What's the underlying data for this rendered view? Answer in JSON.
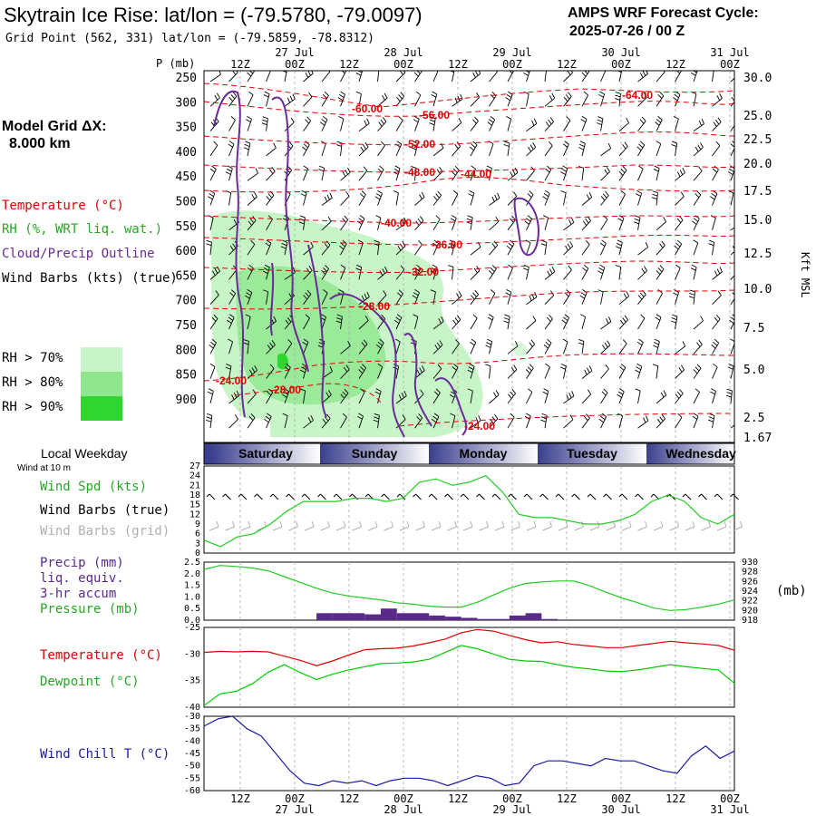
{
  "header": {
    "title": "Skytrain Ice Rise:  lat/lon = (-79.5780, -79.0097)",
    "subtitle": "Grid Point (562, 331) lat/lon = (-79.5859, -78.8312)",
    "cycle_line1": "AMPS WRF Forecast Cycle:",
    "cycle_line2": "2025-07-26 / 00  Z"
  },
  "model_grid": {
    "label": "Model Grid ΔX:",
    "value": "8.000 km"
  },
  "time_axis": {
    "hours": [
      "12Z",
      "00Z",
      "12Z",
      "00Z",
      "12Z",
      "00Z",
      "12Z",
      "00Z",
      "12Z",
      "00Z"
    ],
    "dates": [
      {
        "slot": 1,
        "label": "27 Jul"
      },
      {
        "slot": 3,
        "label": "28 Jul"
      },
      {
        "slot": 5,
        "label": "29 Jul"
      },
      {
        "slot": 7,
        "label": "30 Jul"
      },
      {
        "slot": 9,
        "label": "31 Jul"
      }
    ]
  },
  "weekdays": {
    "label": "Local Weekday",
    "days": [
      "Saturday",
      "Sunday",
      "Monday",
      "Tuesday",
      "Wednesday"
    ]
  },
  "colors": {
    "temperature": "#e00000",
    "rh": "#22cc22",
    "cloud": "#6a2a9a",
    "wind_grid": "#b0b0b0",
    "precip": "#5a2a8a",
    "dewpoint": "#00cc00",
    "windchill": "#1a1aa8",
    "rh70": "#c8f5c8",
    "rh80": "#8ee68e",
    "rh90": "#2ed62e",
    "day_band_dark": "#3a3f8f",
    "day_band_light": "#ffffff"
  },
  "chart_data": [
    {
      "type": "heatmap",
      "name": "cross-section",
      "yaxis_left": {
        "label": "P (mb)",
        "ticks": [
          "250",
          "300",
          "350",
          "400",
          "450",
          "500",
          "550",
          "600",
          "650",
          "700",
          "750",
          "800",
          "850",
          "900"
        ]
      },
      "yaxis_right": {
        "label": "Kft MSL",
        "ticks": [
          "30.0",
          "25.0",
          "22.5",
          "20.0",
          "17.5",
          "15.0",
          "12.5",
          "10.0",
          "7.5",
          "5.0",
          "2.5",
          "1.67"
        ]
      },
      "legend": [
        {
          "label": "Temperature (°C)",
          "color": "#e00000"
        },
        {
          "label": "RH (%, WRT liq. wat.)",
          "color": "#22cc22"
        },
        {
          "label": "Cloud/Precip Outline",
          "color": "#6a2a9a"
        },
        {
          "label": "Wind Barbs (kts) (true)",
          "color": "#000000"
        }
      ],
      "rh_legend": [
        {
          "label": "RH > 70%",
          "color": "#c8f5c8"
        },
        {
          "label": "RH > 80%",
          "color": "#8ee68e"
        },
        {
          "label": "RH > 90%",
          "color": "#2ed62e"
        }
      ],
      "temperature_contours": [
        "-60.00",
        "-56.00",
        "-52.00",
        "-48.00",
        "-44.00",
        "-40.00",
        "-36.00",
        "-32.00",
        "-28.00",
        "-24.00",
        "-28.00",
        "-24.00",
        "-64.00"
      ]
    },
    {
      "type": "line",
      "name": "wind",
      "label_top": "Wind at 10 m",
      "yticks": [
        "27",
        "24",
        "21",
        "18",
        "15",
        "12",
        "9",
        "6",
        "3",
        "0"
      ],
      "ylim": [
        0,
        27
      ],
      "series": [
        {
          "name": "Wind Spd (kts)",
          "color": "#22cc22",
          "values": [
            4,
            2,
            5,
            6,
            9,
            13,
            16,
            16,
            16,
            17,
            17,
            16,
            17,
            22,
            23,
            21,
            22,
            24,
            19,
            12,
            11,
            11,
            10,
            9,
            9,
            10,
            12,
            16,
            18,
            16,
            11,
            9,
            12
          ]
        }
      ],
      "legend": [
        {
          "label": "Wind Spd (kts)",
          "color": "#22cc22"
        },
        {
          "label": "Wind Barbs (true)",
          "color": "#000000"
        },
        {
          "label": "Wind Barbs (grid)",
          "color": "#b0b0b0"
        }
      ]
    },
    {
      "type": "bar",
      "name": "precip-pressure",
      "yticks_left": [
        "2.5",
        "2.0",
        "1.5",
        "1.0",
        "0.5",
        "0.0"
      ],
      "yticks_right": [
        "930",
        "928",
        "926",
        "924",
        "922",
        "920",
        "918"
      ],
      "ylabel_right": "(mb)",
      "ylim_left": [
        0,
        2.5
      ],
      "ylim_right": [
        918,
        930
      ],
      "precip_values": [
        0,
        0,
        0,
        0,
        0,
        0,
        0,
        0.3,
        0.3,
        0.3,
        0.25,
        0.5,
        0.3,
        0.3,
        0.2,
        0.15,
        0.1,
        0.05,
        0.05,
        0.2,
        0.3,
        0.05,
        0,
        0,
        0,
        0,
        0,
        0,
        0,
        0,
        0,
        0,
        0
      ],
      "pressure_values": [
        928.5,
        929.3,
        929.1,
        928.8,
        928.2,
        927.0,
        925.8,
        924.6,
        923.6,
        923.0,
        922.6,
        922.2,
        921.6,
        921.3,
        920.9,
        920.7,
        920.7,
        921.7,
        923.2,
        924.6,
        925.6,
        925.9,
        926.1,
        926.1,
        925.1,
        923.8,
        922.6,
        921.6,
        920.5,
        920.0,
        920.2,
        920.7,
        921.3,
        922.2
      ],
      "legend": [
        {
          "label": "Precip (mm)",
          "color": "#5a2a8a"
        },
        {
          "label": "liq. equiv.",
          "color": "#5a2a8a"
        },
        {
          "label": "3-hr accum",
          "color": "#5a2a8a"
        },
        {
          "label": "Pressure (mb)",
          "color": "#22cc22"
        }
      ]
    },
    {
      "type": "line",
      "name": "temperature",
      "yticks": [
        "-25",
        "-30",
        "-35",
        "-40"
      ],
      "ylim": [
        -40,
        -25
      ],
      "series": [
        {
          "name": "Temperature (°C)",
          "color": "#e00000",
          "values": [
            -29.7,
            -29.5,
            -29.6,
            -29.5,
            -29.6,
            -30.4,
            -31.2,
            -32.2,
            -31.3,
            -30.2,
            -29.2,
            -29.0,
            -28.9,
            -28.5,
            -27.9,
            -27.2,
            -26.0,
            -25.4,
            -25.7,
            -26.5,
            -27.3,
            -27.9,
            -27.7,
            -28.2,
            -28.5,
            -28.8,
            -28.8,
            -28.4,
            -28.0,
            -27.6,
            -27.9,
            -28.1,
            -28.4,
            -29.3
          ]
        },
        {
          "name": "Dewpoint (°C)",
          "color": "#00cc00",
          "values": [
            -39.7,
            -37.5,
            -37.0,
            -35.6,
            -33.4,
            -32.0,
            -33.5,
            -34.8,
            -33.8,
            -33.0,
            -32.4,
            -31.8,
            -31.7,
            -31.5,
            -31.0,
            -29.7,
            -28.4,
            -29.0,
            -30.0,
            -31.0,
            -31.3,
            -31.4,
            -32.0,
            -32.5,
            -32.8,
            -33.2,
            -33.3,
            -33.0,
            -32.5,
            -32.0,
            -32.4,
            -32.7,
            -33.0,
            -35.5
          ]
        }
      ]
    },
    {
      "type": "line",
      "name": "windchill",
      "yticks": [
        "-30",
        "-35",
        "-40",
        "-45",
        "-50",
        "-55",
        "-60"
      ],
      "ylim": [
        -60,
        -30
      ],
      "series": [
        {
          "name": "Wind Chill T (°C)",
          "color": "#1a1aa8",
          "values": [
            -34,
            -31,
            -30,
            -35,
            -38,
            -45,
            -52,
            -57,
            -58,
            -56,
            -57,
            -56,
            -58,
            -56,
            -55,
            -55,
            -56,
            -58,
            -56,
            -54,
            -55,
            -58,
            -57,
            -50,
            -48,
            -48,
            -49,
            -50,
            -47,
            -48,
            -48,
            -50,
            -52,
            -53,
            -46,
            -42,
            -47,
            -44
          ]
        }
      ]
    }
  ]
}
